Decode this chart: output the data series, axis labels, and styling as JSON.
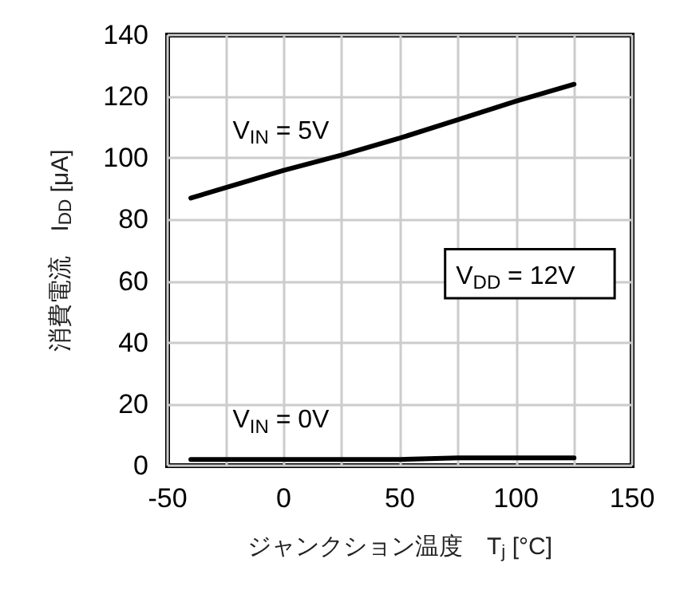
{
  "chart_data": {
    "type": "line",
    "xlabel": "ジャンクション温度　T$_{j}$ [°C]",
    "ylabel": "消費電流　I$_{DD}$ [μA]",
    "x": [
      -40,
      0,
      25,
      50,
      75,
      100,
      125
    ],
    "series": [
      {
        "name": "V$_{IN}$ = 5V",
        "color": "#000000",
        "values": [
          87,
          96,
          101,
          106.5,
          112.5,
          118.5,
          124
        ]
      },
      {
        "name": "V$_{IN}$ = 0V",
        "color": "#000000",
        "values": [
          2,
          2,
          2,
          2,
          2.5,
          2.5,
          2.5
        ]
      }
    ],
    "xlim": [
      -50,
      150
    ],
    "xticks": [
      -50,
      {
        "value": -25,
        "label": null
      },
      0,
      {
        "value": 25,
        "label": null
      },
      50,
      {
        "value": 75,
        "label": null
      },
      100,
      {
        "value": 125,
        "label": null
      },
      150
    ],
    "ylim": [
      0,
      140
    ],
    "yticks": [
      0,
      20,
      40,
      60,
      80,
      100,
      120,
      140
    ],
    "annotations": [
      "V$_{DD}$ = 12V"
    ],
    "grid": true,
    "legend": false,
    "marker": "none",
    "line_style": "solid"
  }
}
